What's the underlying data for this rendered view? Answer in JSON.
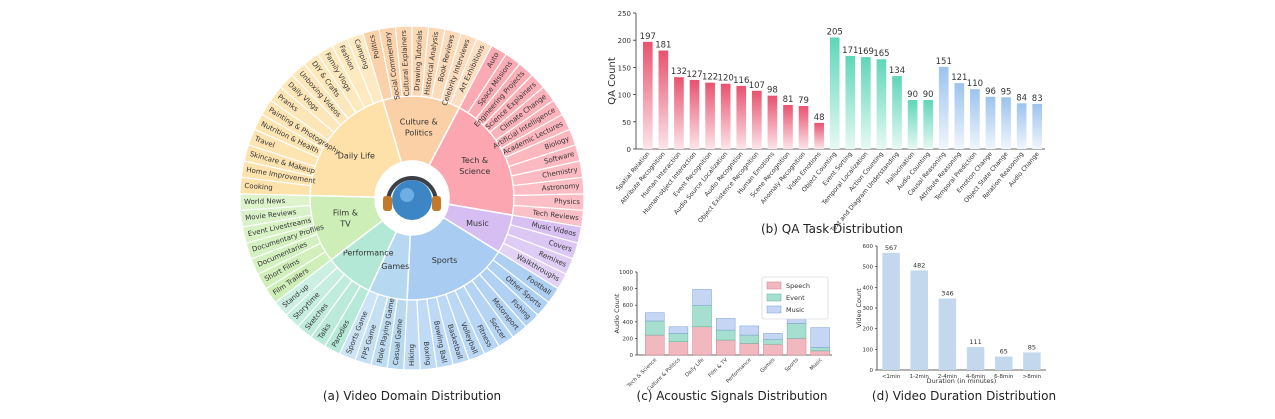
{
  "captions": {
    "a": "(a) Video Domain Distribution",
    "b": "(b) QA Task Distribution",
    "c": "(c) Acoustic Signals Distribution",
    "d": "(d) Video Duration Distribution"
  },
  "colors": {
    "qa_perception": "#e8526f",
    "qa_reasoning": "#5fd6b8",
    "qa_blue": "#9cc3ee",
    "speech": "#f2b8c0",
    "event": "#a6dfd0",
    "music": "#c4d6f3",
    "duration": "#c3d8ec"
  },
  "chart_data": [
    {
      "type": "sunburst",
      "inner": [
        {
          "name": "Culture & Politics",
          "color": "#fbd0a6",
          "children": [
            "Politics",
            "Social Commentary",
            "Cultural Explainers",
            "Drawing Tutorials",
            "Historical Analysis",
            "Book Reviews",
            "Celebrity Interviews",
            "Art Exhibitions"
          ]
        },
        {
          "name": "Tech & Science",
          "color": "#fba6b0",
          "children": [
            "Auto",
            "Space Missions",
            "Engineering Projects",
            "Science Explainers",
            "Climate Change",
            "Artificial Intelligence",
            "Academic Lectures",
            "Biology",
            "Software",
            "Chemistry",
            "Astronomy",
            "Physics",
            "Tech Reviews"
          ]
        },
        {
          "name": "Music",
          "color": "#d7bef2",
          "children": [
            "Music Videos",
            "Covers",
            "Remixes",
            "Walkthroughs"
          ]
        },
        {
          "name": "Sports",
          "color": "#a9cdf2",
          "children": [
            "Football",
            "Other Sports",
            "Fishing",
            "Motorsport",
            "Soccer",
            "Fitness",
            "Volleyball",
            "Basketball",
            "Bowling Ball",
            "Boxing",
            "Hiking"
          ]
        },
        {
          "name": "Games",
          "color": "#b6d8f0",
          "children": [
            "Casual Game",
            "Role Playing Game",
            "FPS Game",
            "Sports Game"
          ]
        },
        {
          "name": "Performance",
          "color": "#b4e8d6",
          "children": [
            "Parodies",
            "Talks",
            "Sketches",
            "Storytime",
            "Stand-up"
          ]
        },
        {
          "name": "Film & TV",
          "color": "#cdeeb6",
          "children": [
            "Film Trailers",
            "Short Films",
            "Documentaries",
            "Documentary Profiles",
            "Event Livestreams",
            "Movie Reviews",
            "World News"
          ]
        },
        {
          "name": "Daily Life",
          "color": "#fde1a8",
          "children": [
            "Cooking",
            "Home Improvement",
            "Skincare & Makeup",
            "Travel",
            "Nutrition & Health",
            "Painting & Photography",
            "Pranks",
            "Daily Vlogs",
            "Unboxing Videos",
            "DIY & Crafts",
            "Family Vlogs",
            "Fashion",
            "Camping"
          ]
        }
      ]
    },
    {
      "type": "bar",
      "ylabel": "QA Count",
      "ylim": [
        0,
        250
      ],
      "yticks": [
        0,
        50,
        100,
        150,
        200,
        250
      ],
      "categories": [
        "Spatial Relation",
        "Attribute Recognition",
        "Human Interaction",
        "Human-object Interaction",
        "Event Recognition",
        "Audio Source Localization",
        "Audio Recognition",
        "Object Existence Recognition",
        "Human Emotions",
        "Scene Recognition",
        "Anomaly Recognition",
        "Video Emotions",
        "Object Counting",
        "Event Sorting",
        "Temporal Localization",
        "Action Counting",
        "Text and Diagram Understanding",
        "Hallucination",
        "Audio Counting",
        "Causal Reasoning",
        "Attribute Reasoning",
        "Temporal Prediction",
        "Emotion Change",
        "Object State Change",
        "Relation Reasoning",
        "Audio Change"
      ],
      "values": [
        197,
        181,
        132,
        127,
        122,
        120,
        116,
        107,
        98,
        81,
        79,
        48,
        205,
        171,
        169,
        165,
        134,
        90,
        90,
        151,
        121,
        110,
        96,
        95,
        84,
        83
      ],
      "groups": [
        "perception",
        "perception",
        "perception",
        "perception",
        "perception",
        "perception",
        "perception",
        "perception",
        "perception",
        "perception",
        "perception",
        "perception",
        "reasoning",
        "reasoning",
        "reasoning",
        "reasoning",
        "reasoning",
        "reasoning",
        "reasoning",
        "blue",
        "blue",
        "blue",
        "blue",
        "blue",
        "blue",
        "blue"
      ]
    },
    {
      "type": "stacked-bar",
      "ylabel": "Audio Count",
      "ylim": [
        0,
        1000
      ],
      "yticks": [
        0,
        200,
        400,
        600,
        800,
        1000
      ],
      "categories": [
        "Tech & Science",
        "Culture & Politics",
        "Daily Life",
        "Film & TV",
        "Performance",
        "Games",
        "Sports",
        "Music"
      ],
      "series": [
        {
          "name": "Speech",
          "values": [
            240,
            160,
            340,
            180,
            140,
            130,
            200,
            50
          ]
        },
        {
          "name": "Event",
          "values": [
            170,
            100,
            260,
            120,
            100,
            60,
            180,
            40
          ]
        },
        {
          "name": "Music",
          "values": [
            100,
            80,
            190,
            140,
            110,
            70,
            70,
            240
          ]
        }
      ],
      "legend": "top-right"
    },
    {
      "type": "bar",
      "ylabel": "Video Count",
      "xlabel": "Duration (in minutes)",
      "ylim": [
        0,
        600
      ],
      "yticks": [
        0,
        100,
        200,
        300,
        400,
        500,
        600
      ],
      "categories": [
        "<1min",
        "1-2min",
        "2-4min",
        "4-6min",
        "6-8min",
        ">8min"
      ],
      "values": [
        567,
        482,
        346,
        111,
        65,
        85
      ]
    }
  ]
}
